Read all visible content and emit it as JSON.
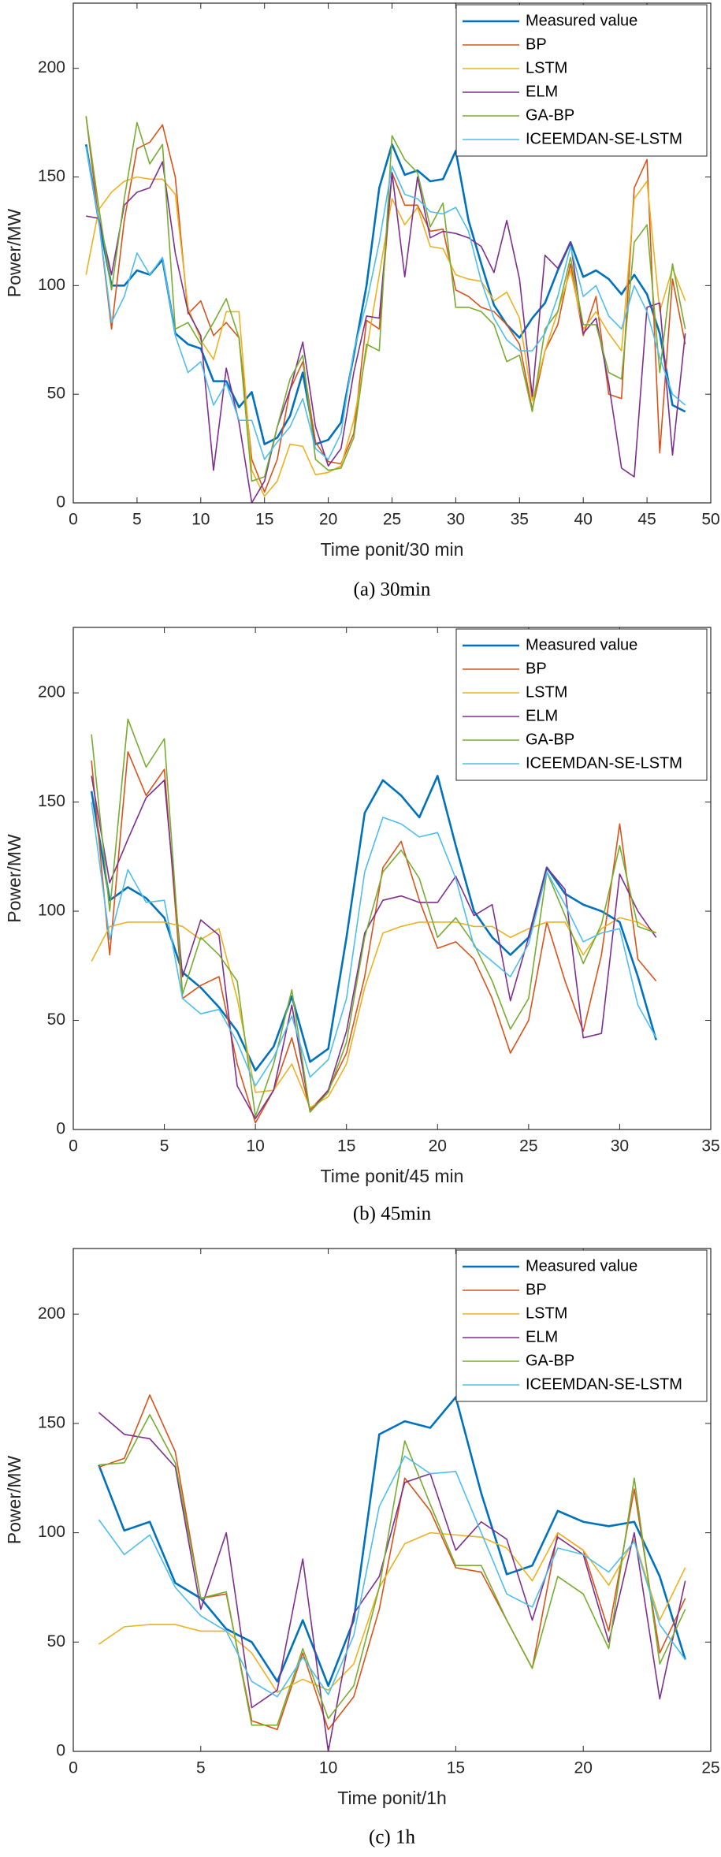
{
  "chart_data": [
    {
      "type": "line",
      "caption": "(a) 30min",
      "xlabel": "Time ponit/30 min",
      "ylabel": "Power/MW",
      "xlim": [
        0,
        50
      ],
      "xticks": [
        0,
        5,
        10,
        15,
        20,
        25,
        30,
        35,
        40,
        45,
        50
      ],
      "ylim": [
        0,
        230
      ],
      "yticks": [
        0,
        50,
        100,
        150,
        200
      ],
      "legend": "upper right",
      "x": [
        1,
        2,
        3,
        4,
        5,
        6,
        7,
        8,
        9,
        10,
        11,
        12,
        13,
        14,
        15,
        16,
        17,
        18,
        19,
        20,
        21,
        22,
        23,
        24,
        25,
        26,
        27,
        28,
        29,
        30,
        31,
        32,
        33,
        34,
        35,
        36,
        37,
        38,
        39,
        40,
        41,
        42,
        43,
        44,
        45,
        46,
        47,
        48
      ],
      "series": [
        {
          "name": "Measured value",
          "color": "#0072BD",
          "values": [
            165,
            130,
            100,
            100,
            107,
            105,
            112,
            78,
            73,
            71,
            56,
            56,
            44,
            51,
            27,
            30,
            40,
            60,
            27,
            29,
            37,
            68,
            100,
            145,
            165,
            151,
            153,
            148,
            149,
            162,
            130,
            110,
            91,
            82,
            76,
            85,
            92,
            107,
            120,
            104,
            107,
            103,
            96,
            105,
            96,
            78,
            45,
            42
          ]
        },
        {
          "name": "BP",
          "color": "#D95319",
          "values": [
            178,
            130,
            80,
            130,
            163,
            166,
            174,
            150,
            87,
            93,
            77,
            83,
            76,
            20,
            5,
            20,
            52,
            65,
            28,
            19,
            18,
            32,
            84,
            80,
            152,
            137,
            137,
            125,
            126,
            98,
            95,
            90,
            88,
            82,
            73,
            43,
            70,
            82,
            110,
            77,
            95,
            50,
            48,
            145,
            158,
            23,
            103,
            73
          ]
        },
        {
          "name": "LSTM",
          "color": "#EDB120",
          "values": [
            105,
            135,
            143,
            148,
            150,
            149,
            149,
            142,
            90,
            75,
            66,
            88,
            88,
            15,
            3,
            10,
            27,
            26,
            13,
            14,
            17,
            38,
            70,
            105,
            140,
            128,
            136,
            118,
            117,
            105,
            103,
            102,
            93,
            97,
            85,
            47,
            70,
            88,
            107,
            80,
            88,
            78,
            70,
            140,
            148,
            88,
            108,
            93
          ]
        },
        {
          "name": "ELM",
          "color": "#7E2F8E",
          "values": [
            132,
            131,
            105,
            137,
            143,
            145,
            157,
            115,
            88,
            77,
            15,
            62,
            37,
            0,
            10,
            35,
            52,
            74,
            35,
            17,
            25,
            60,
            86,
            85,
            152,
            104,
            150,
            122,
            125,
            124,
            122,
            118,
            106,
            130,
            103,
            49,
            114,
            108,
            120,
            78,
            85,
            55,
            16,
            12,
            90,
            92,
            22,
            78
          ]
        },
        {
          "name": "GA-BP",
          "color": "#77AC30",
          "values": [
            178,
            136,
            98,
            140,
            175,
            156,
            165,
            80,
            83,
            73,
            83,
            94,
            76,
            10,
            12,
            35,
            57,
            68,
            20,
            15,
            16,
            30,
            73,
            70,
            169,
            158,
            152,
            127,
            138,
            90,
            90,
            88,
            82,
            65,
            68,
            42,
            80,
            88,
            113,
            82,
            82,
            60,
            57,
            120,
            128,
            60,
            110,
            80
          ]
        },
        {
          "name": "ICEEMDAN-SE-LSTM",
          "color": "#4DBEEE",
          "values": [
            164,
            130,
            83,
            95,
            115,
            105,
            113,
            77,
            60,
            65,
            45,
            55,
            38,
            38,
            20,
            28,
            35,
            48,
            25,
            20,
            32,
            70,
            92,
            120,
            155,
            142,
            140,
            134,
            133,
            136,
            125,
            102,
            85,
            75,
            70,
            70,
            78,
            95,
            118,
            95,
            100,
            86,
            80,
            100,
            88,
            67,
            50,
            45
          ]
        }
      ]
    },
    {
      "type": "line",
      "caption": "(b) 45min",
      "xlabel": "Time ponit/45 min",
      "ylabel": "Power/MW",
      "xlim": [
        0,
        35
      ],
      "xticks": [
        0,
        5,
        10,
        15,
        20,
        25,
        30,
        35
      ],
      "ylim": [
        0,
        230
      ],
      "yticks": [
        0,
        50,
        100,
        150,
        200
      ],
      "legend": "upper right",
      "x": [
        1,
        2,
        3,
        4,
        5,
        6,
        7,
        8,
        9,
        10,
        11,
        12,
        13,
        14,
        15,
        16,
        17,
        18,
        19,
        20,
        21,
        22,
        23,
        24,
        25,
        26,
        27,
        28,
        29,
        30,
        31,
        32
      ],
      "series": [
        {
          "name": "Measured value",
          "color": "#0072BD",
          "values": [
            155,
            105,
            111,
            106,
            97,
            72,
            65,
            56,
            45,
            27,
            38,
            61,
            31,
            37,
            88,
            145,
            160,
            153,
            143,
            162,
            130,
            100,
            88,
            80,
            88,
            120,
            108,
            103,
            100,
            95,
            70,
            41
          ]
        },
        {
          "name": "BP",
          "color": "#D95319",
          "values": [
            169,
            80,
            173,
            153,
            165,
            60,
            66,
            70,
            30,
            3,
            18,
            42,
            9,
            18,
            35,
            70,
            120,
            132,
            105,
            83,
            86,
            78,
            60,
            35,
            50,
            95,
            68,
            45,
            80,
            140,
            78,
            68
          ]
        },
        {
          "name": "LSTM",
          "color": "#EDB120",
          "values": [
            77,
            93,
            95,
            95,
            95,
            93,
            87,
            92,
            60,
            17,
            18,
            30,
            10,
            15,
            30,
            65,
            90,
            93,
            95,
            95,
            95,
            93,
            93,
            88,
            92,
            95,
            95,
            80,
            92,
            97,
            95,
            90
          ]
        },
        {
          "name": "ELM",
          "color": "#7E2F8E",
          "values": [
            162,
            113,
            133,
            152,
            160,
            70,
            96,
            89,
            20,
            5,
            18,
            57,
            8,
            18,
            45,
            90,
            105,
            107,
            104,
            104,
            116,
            98,
            103,
            59,
            88,
            120,
            110,
            42,
            44,
            117,
            100,
            88
          ]
        },
        {
          "name": "GA-BP",
          "color": "#77AC30",
          "values": [
            181,
            100,
            188,
            166,
            179,
            62,
            88,
            80,
            68,
            6,
            30,
            64,
            8,
            17,
            40,
            88,
            118,
            128,
            115,
            88,
            97,
            85,
            68,
            46,
            60,
            118,
            98,
            76,
            94,
            130,
            93,
            90
          ]
        },
        {
          "name": "ICEEMDAN-SE-LSTM",
          "color": "#4DBEEE",
          "values": [
            150,
            87,
            119,
            104,
            105,
            60,
            53,
            55,
            40,
            20,
            33,
            52,
            24,
            32,
            60,
            118,
            143,
            140,
            134,
            136,
            115,
            84,
            77,
            70,
            85,
            118,
            103,
            86,
            90,
            92,
            57,
            42
          ]
        }
      ]
    },
    {
      "type": "line",
      "caption": "(c) 1h",
      "xlabel": "Time ponit/1h",
      "ylabel": "Power/MW",
      "xlim": [
        0,
        25
      ],
      "xticks": [
        0,
        5,
        10,
        15,
        20,
        25
      ],
      "ylim": [
        0,
        230
      ],
      "yticks": [
        0,
        50,
        100,
        150,
        200
      ],
      "legend": "upper right",
      "x": [
        1,
        2,
        3,
        4,
        5,
        6,
        7,
        8,
        9,
        10,
        11,
        12,
        13,
        14,
        15,
        16,
        17,
        18,
        19,
        20,
        21,
        22,
        23,
        24
      ],
      "series": [
        {
          "name": "Measured value",
          "color": "#0072BD",
          "values": [
            131,
            101,
            105,
            77,
            70,
            56,
            50,
            32,
            60,
            30,
            60,
            145,
            151,
            148,
            162,
            118,
            81,
            85,
            110,
            105,
            103,
            105,
            80,
            42
          ]
        },
        {
          "name": "BP",
          "color": "#D95319",
          "values": [
            130,
            134,
            163,
            137,
            70,
            72,
            14,
            10,
            45,
            10,
            25,
            65,
            125,
            110,
            84,
            82,
            60,
            38,
            100,
            92,
            55,
            120,
            45,
            70
          ]
        },
        {
          "name": "LSTM",
          "color": "#EDB120",
          "values": [
            49,
            57,
            58,
            58,
            55,
            55,
            45,
            27,
            33,
            28,
            40,
            75,
            95,
            100,
            99,
            98,
            93,
            78,
            100,
            92,
            76,
            97,
            60,
            84
          ]
        },
        {
          "name": "ELM",
          "color": "#7E2F8E",
          "values": [
            155,
            145,
            143,
            130,
            65,
            100,
            20,
            28,
            88,
            0,
            63,
            80,
            123,
            127,
            92,
            105,
            97,
            60,
            98,
            90,
            50,
            100,
            24,
            78
          ]
        },
        {
          "name": "GA-BP",
          "color": "#77AC30",
          "values": [
            131,
            132,
            154,
            132,
            70,
            73,
            12,
            12,
            47,
            15,
            30,
            75,
            142,
            113,
            85,
            85,
            60,
            38,
            80,
            72,
            47,
            125,
            40,
            65
          ]
        },
        {
          "name": "ICEEMDAN-SE-LSTM",
          "color": "#4DBEEE",
          "values": [
            106,
            90,
            99,
            75,
            62,
            55,
            32,
            25,
            43,
            26,
            53,
            112,
            135,
            127,
            128,
            100,
            72,
            66,
            93,
            90,
            82,
            96,
            58,
            42
          ]
        }
      ]
    }
  ]
}
